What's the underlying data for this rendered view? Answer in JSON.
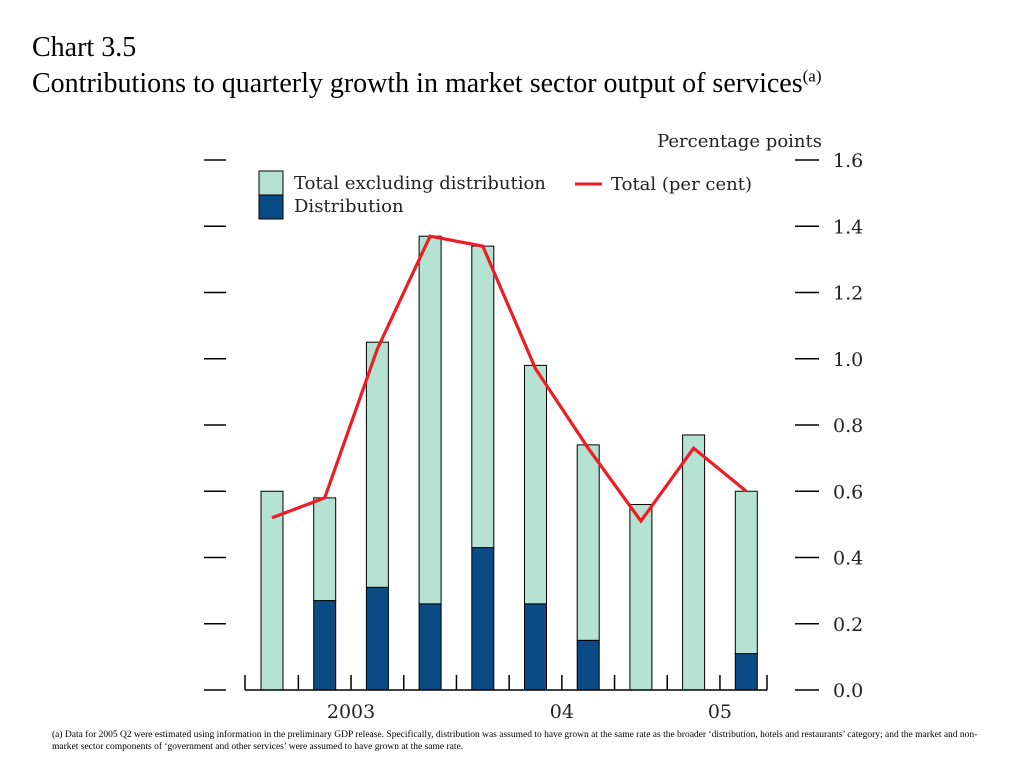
{
  "title": {
    "line1": "Chart 3.5",
    "line2": "Contributions to quarterly growth in market sector output of services",
    "superscript": "(a)"
  },
  "footnote": "(a)  Data for 2005 Q2 were estimated using information in the preliminary GDP release.  Specifically, distribution was assumed to have grown at the same rate as the broader ‘distribution, hotels and restaurants’ category;  and the market and non-market sector components of ‘government and other services’ were assumed to have grown at the same rate.",
  "chart_data": {
    "type": "bar",
    "stacked": true,
    "unit_label": "Percentage points",
    "ylim": [
      0,
      1.6
    ],
    "yticks": [
      "0.0",
      "0.2",
      "0.4",
      "0.6",
      "0.8",
      "1.0",
      "1.2",
      "1.4",
      "1.6"
    ],
    "xtick_labels": [
      {
        "label": "2003",
        "after_bar": 2
      },
      {
        "label": "04",
        "after_bar": 6
      },
      {
        "label": "05",
        "after_bar": 9
      }
    ],
    "bar_count": 10,
    "series": [
      {
        "name": "Distribution",
        "kind": "bar",
        "color": "#0a4a85",
        "values": [
          0.0,
          0.27,
          0.31,
          0.26,
          0.43,
          0.26,
          0.15,
          0.0,
          0.0,
          0.11
        ]
      },
      {
        "name": "Total excluding distribution",
        "kind": "bar",
        "color": "#b5e2d3",
        "values": [
          0.6,
          0.31,
          0.74,
          1.11,
          0.91,
          0.72,
          0.59,
          0.56,
          0.77,
          0.49
        ]
      },
      {
        "name": "Total (per cent)",
        "kind": "line",
        "color": "#ee1c25",
        "values": [
          0.52,
          0.58,
          1.03,
          1.37,
          1.34,
          0.97,
          0.73,
          0.51,
          0.73,
          0.6
        ]
      }
    ],
    "legend": {
      "placement": "top-left"
    },
    "grid": false
  }
}
